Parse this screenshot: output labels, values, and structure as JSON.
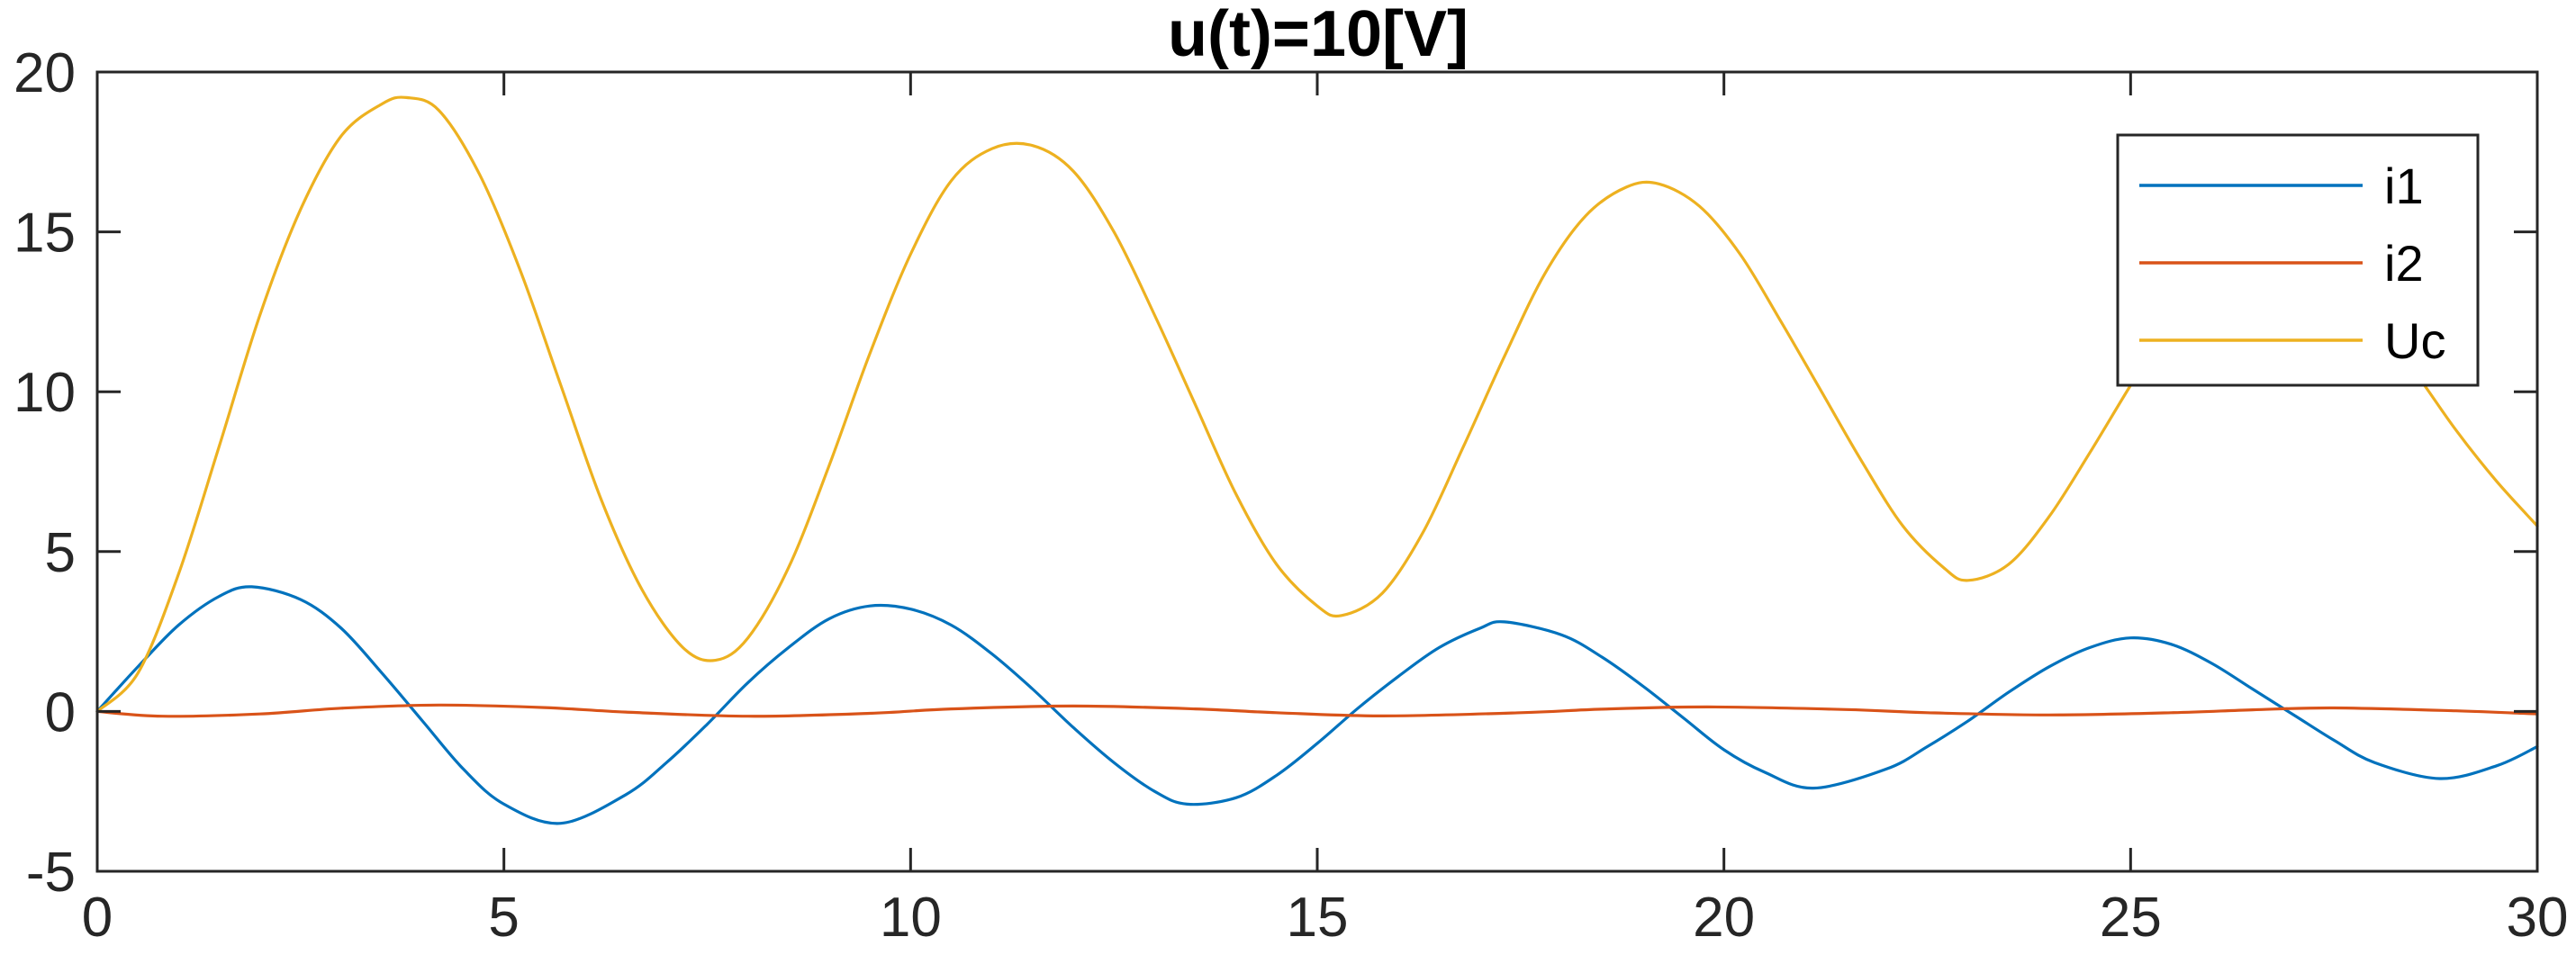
{
  "chart_data": {
    "type": "line",
    "title": "u(t)=10[V]",
    "xlabel": "",
    "ylabel": "",
    "xlim": [
      0,
      30
    ],
    "ylim": [
      -5,
      20
    ],
    "xticks": [
      0,
      5,
      10,
      15,
      20,
      25,
      30
    ],
    "yticks": [
      -5,
      0,
      5,
      10,
      15,
      20
    ],
    "grid": false,
    "legend_position": "top-right",
    "series": [
      {
        "name": "i1",
        "color": "#0072BD",
        "x": [
          0,
          0.5,
          1,
          1.5,
          1.9,
          2.5,
          3,
          3.5,
          4,
          4.5,
          5,
          5.7,
          6.5,
          7,
          7.5,
          8,
          8.5,
          9,
          9.5,
          10,
          10.5,
          11,
          11.5,
          12,
          12.5,
          13,
          13.4,
          14,
          14.5,
          15,
          15.5,
          16,
          16.5,
          17,
          17.3,
          18,
          18.5,
          19,
          19.5,
          20,
          20.5,
          21.1,
          22,
          22.5,
          23,
          23.5,
          24,
          24.5,
          25,
          25.5,
          26,
          26.5,
          27,
          27.5,
          28,
          28.8,
          29.5,
          30
        ],
        "y": [
          0,
          1.4,
          2.7,
          3.6,
          3.9,
          3.5,
          2.6,
          1.2,
          -0.3,
          -1.8,
          -2.9,
          -3.5,
          -2.6,
          -1.6,
          -0.4,
          0.9,
          2.0,
          2.9,
          3.3,
          3.2,
          2.7,
          1.8,
          0.7,
          -0.5,
          -1.6,
          -2.5,
          -2.9,
          -2.7,
          -2.0,
          -1.0,
          0.1,
          1.1,
          2.0,
          2.6,
          2.8,
          2.4,
          1.7,
          0.8,
          -0.2,
          -1.2,
          -1.9,
          -2.4,
          -1.8,
          -1.1,
          -0.3,
          0.6,
          1.4,
          2.0,
          2.3,
          2.1,
          1.5,
          0.7,
          -0.1,
          -0.9,
          -1.6,
          -2.1,
          -1.7,
          -1.1
        ]
      },
      {
        "name": "i2",
        "color": "#D95319",
        "x": [
          0,
          0.8,
          2,
          3,
          4.2,
          5.5,
          6.5,
          8,
          9.5,
          10.5,
          12,
          13.5,
          14.5,
          15.8,
          17.5,
          18.5,
          19.8,
          21.5,
          22.5,
          24,
          25.5,
          26.5,
          27.5,
          29,
          30
        ],
        "y": [
          0,
          -0.15,
          -0.08,
          0.1,
          0.2,
          0.12,
          -0.02,
          -0.15,
          -0.06,
          0.08,
          0.17,
          0.08,
          -0.04,
          -0.14,
          -0.04,
          0.07,
          0.14,
          0.06,
          -0.04,
          -0.11,
          -0.04,
          0.05,
          0.11,
          0.02,
          -0.08
        ]
      },
      {
        "name": "Uc",
        "color": "#EDB120",
        "x": [
          0,
          0.5,
          1,
          1.5,
          2,
          2.5,
          3,
          3.5,
          3.8,
          4.2,
          4.7,
          5.2,
          5.7,
          6.2,
          6.7,
          7.2,
          7.6,
          8.0,
          8.5,
          9,
          9.5,
          10,
          10.5,
          11,
          11.5,
          12,
          12.5,
          13,
          13.5,
          14,
          14.5,
          15,
          15.3,
          15.8,
          16.3,
          16.8,
          17.3,
          17.8,
          18.3,
          18.8,
          19.2,
          19.7,
          20.2,
          20.7,
          21.2,
          21.7,
          22.2,
          22.7,
          23.0,
          23.5,
          24,
          24.5,
          25,
          25.5,
          26,
          26.5,
          27,
          27.5,
          28,
          28.5,
          29,
          29.5,
          30
        ],
        "y": [
          0,
          1.2,
          4.3,
          8.3,
          12.4,
          15.7,
          18.0,
          19.0,
          19.2,
          18.8,
          16.8,
          13.8,
          10.2,
          6.6,
          3.8,
          2.0,
          1.6,
          2.3,
          4.5,
          7.7,
          11.2,
          14.3,
          16.6,
          17.6,
          17.7,
          16.9,
          15.0,
          12.4,
          9.6,
          6.8,
          4.6,
          3.3,
          3.0,
          3.7,
          5.6,
          8.3,
          11.1,
          13.7,
          15.5,
          16.4,
          16.5,
          15.8,
          14.3,
          12.2,
          10.0,
          7.8,
          5.8,
          4.5,
          4.1,
          4.6,
          6.1,
          8.1,
          10.2,
          12.2,
          13.7,
          14.4,
          14.3,
          13.5,
          12.2,
          10.6,
          8.8,
          7.2,
          5.8
        ]
      }
    ]
  }
}
